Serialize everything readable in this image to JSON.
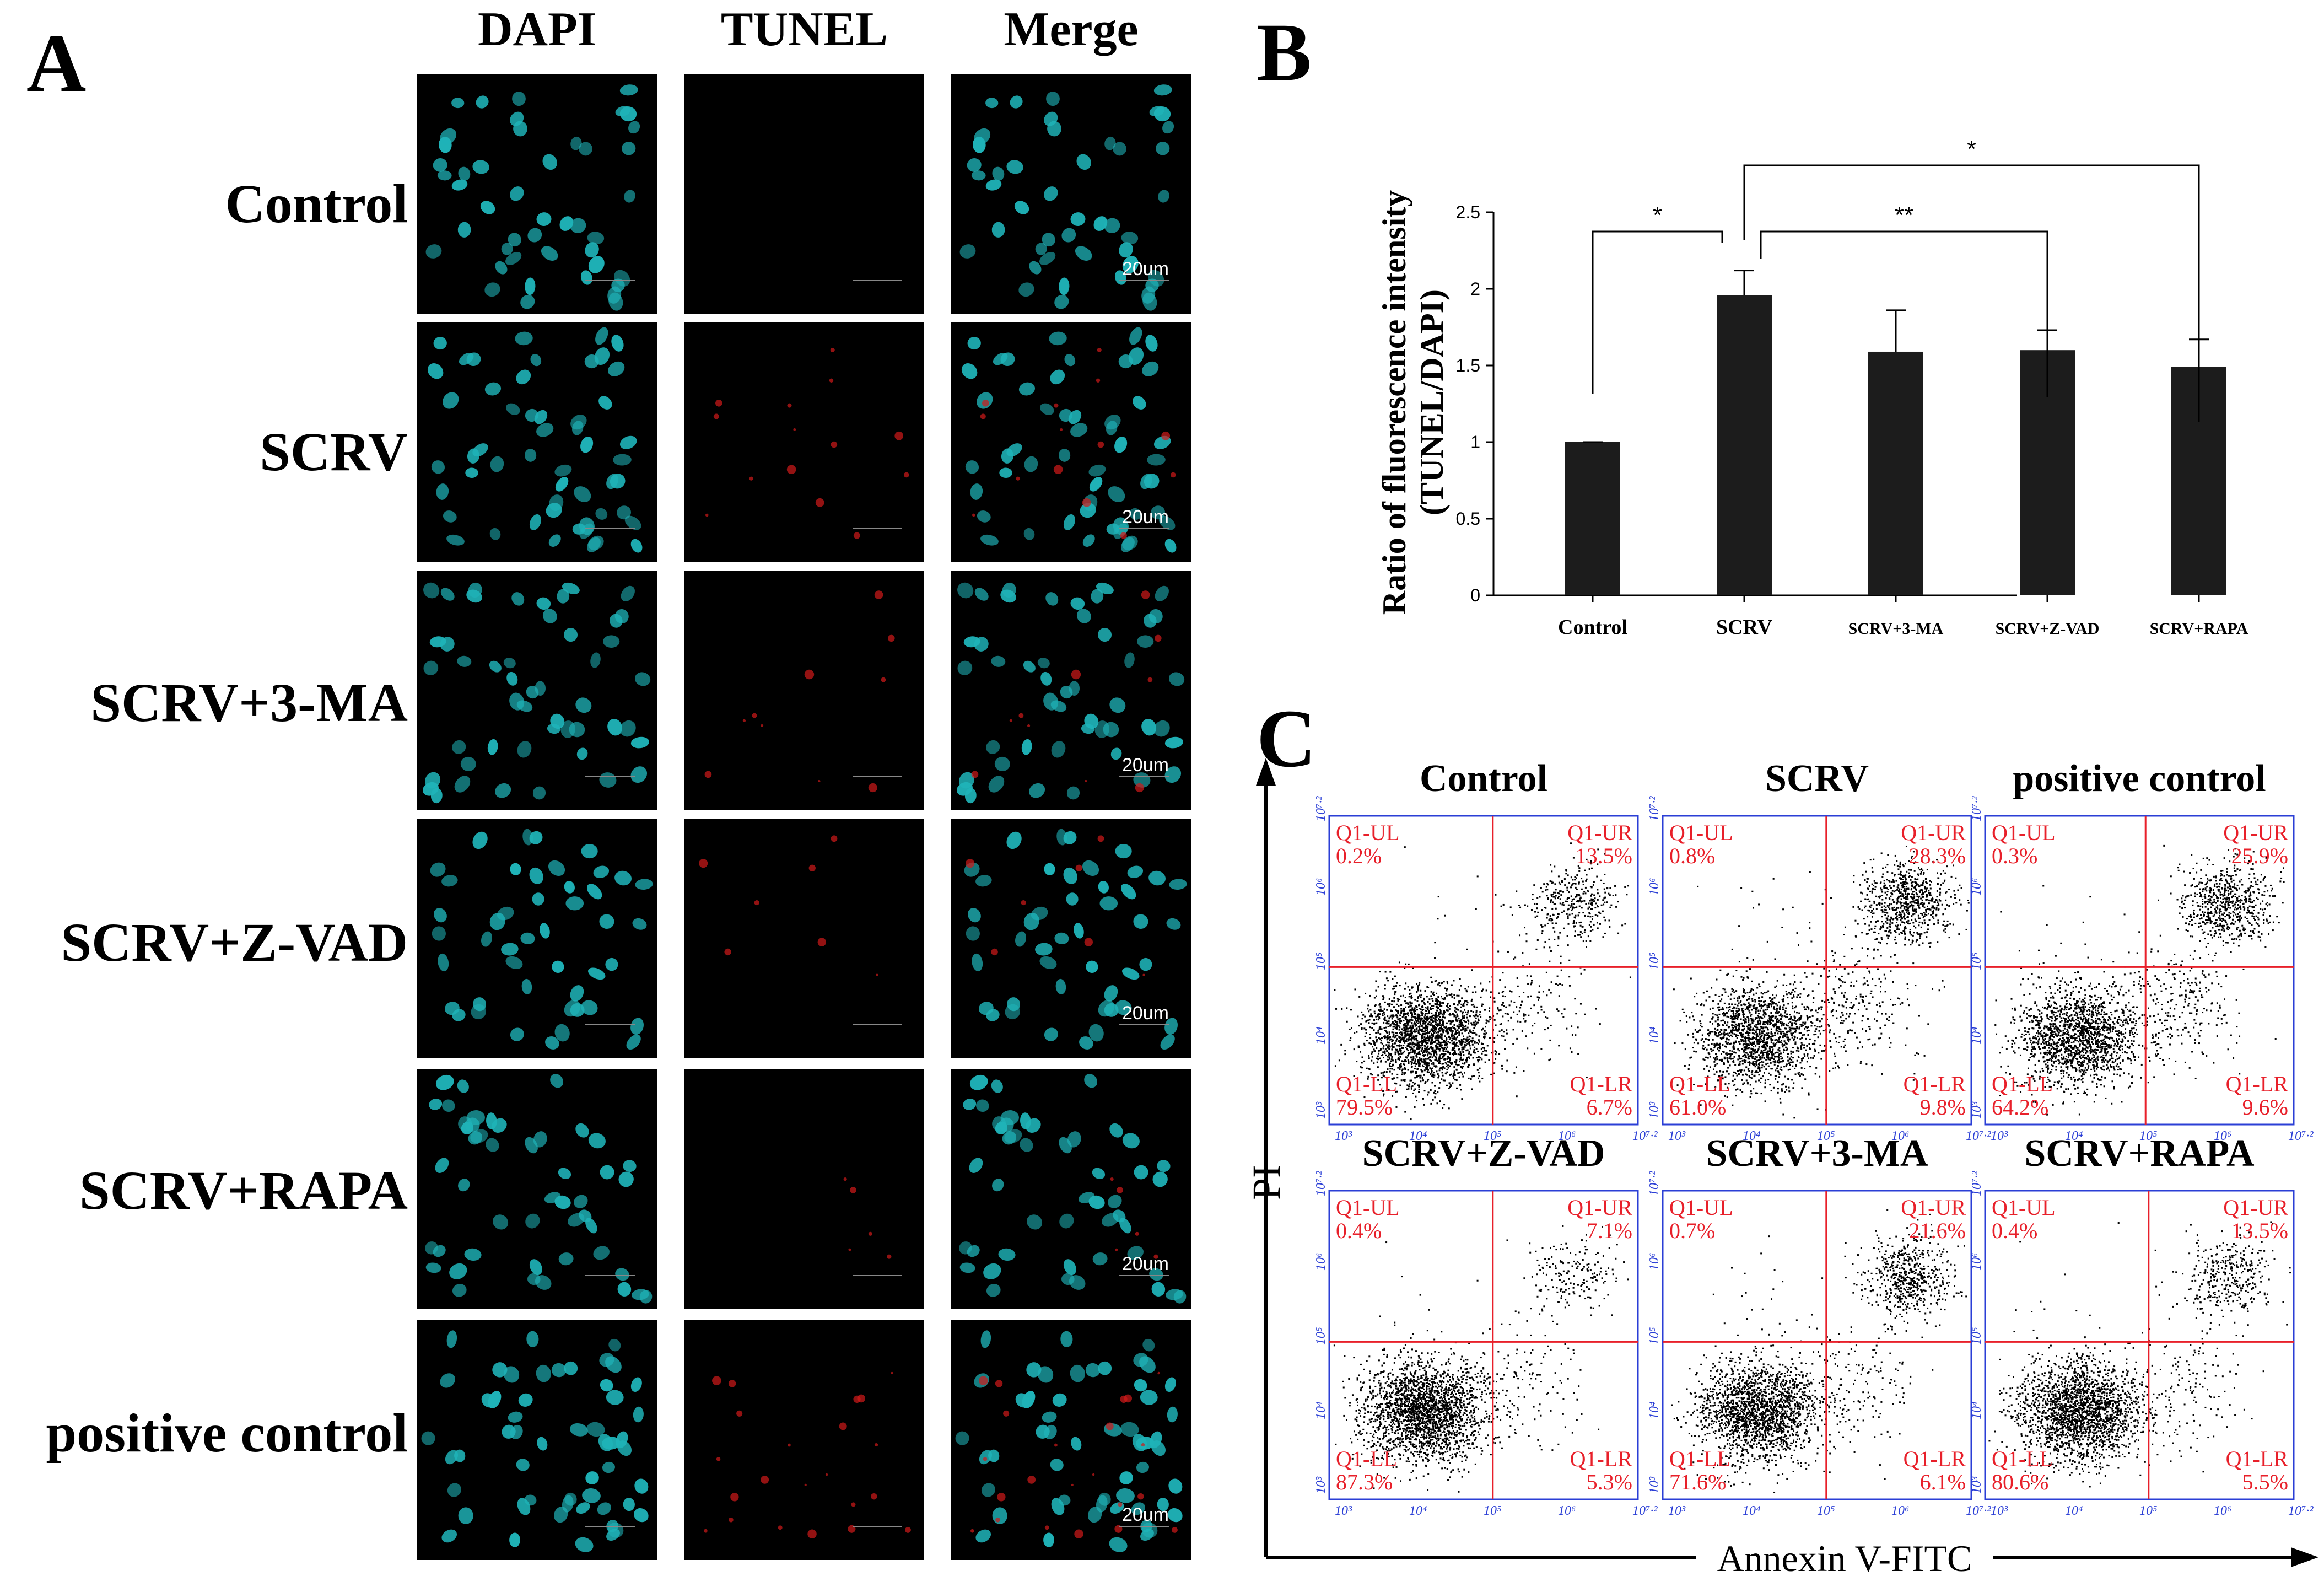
{
  "panels": {
    "a": {
      "letter": "A"
    },
    "b": {
      "letter": "B"
    },
    "c": {
      "letter": "C"
    }
  },
  "microscopy": {
    "columns": [
      "DAPI",
      "TUNEL",
      "Merge"
    ],
    "rows": [
      "Control",
      "SCRV",
      "SCRV+3-MA",
      "SCRV+Z-VAD",
      "SCRV+RAPA",
      "positive control"
    ],
    "scale_label": "20um",
    "colors": {
      "dapi": "#1fb3b8",
      "tunel": "#d21a1a",
      "background": "#000000"
    }
  },
  "chart_data": [
    {
      "type": "bar",
      "title": "",
      "ylabel_line1": "Ratio of fluorescence intensity",
      "ylabel_line2": "(TUNEL/DAPI)",
      "xlabel": "",
      "categories": [
        "Control",
        "SCRV",
        "SCRV+3-MA",
        "SCRV+Z-VAD",
        "SCRV+RAPA"
      ],
      "values": [
        1.0,
        1.96,
        1.59,
        1.6,
        1.49
      ],
      "errors": [
        0.0,
        0.16,
        0.27,
        0.13,
        0.18
      ],
      "ylim": [
        0,
        2.5
      ],
      "yticks": [
        0,
        0.5,
        1,
        1.5,
        2,
        2.5
      ],
      "ytick_labels": [
        "0",
        "0.5",
        "1",
        "1.5",
        "2",
        "2.5"
      ],
      "bar_color": "#1c1c1c",
      "significance": [
        {
          "from": "Control",
          "to": "SCRV",
          "label": "*"
        },
        {
          "from": "SCRV",
          "to": "SCRV+Z-VAD",
          "label": "**"
        },
        {
          "from": "SCRV",
          "to": "SCRV+RAPA",
          "label": "*"
        }
      ]
    },
    {
      "type": "scatter",
      "xlabel": "Annexin V-FITC",
      "ylabel": "PI",
      "axis_tick_labels": [
        "10³",
        "10⁴",
        "10⁵",
        "10⁶",
        "10⁷·²"
      ],
      "quadrant_line_color": "#e8202a",
      "frame_color": "#2b3fd6",
      "point_color": "#000000",
      "plots": [
        {
          "title": "Control",
          "quadrants": {
            "UL": "Q1-UL",
            "UR": "Q1-UR",
            "LL": "Q1-LL",
            "LR": "Q1-LR"
          },
          "UL": "0.2%",
          "UR": "13.5%",
          "LL": "79.5%",
          "LR": "6.7%"
        },
        {
          "title": "SCRV",
          "quadrants": {
            "UL": "Q1-UL",
            "UR": "Q1-UR",
            "LL": "Q1-LL",
            "LR": "Q1-LR"
          },
          "UL": "0.8%",
          "UR": "28.3%",
          "LL": "61.0%",
          "LR": "9.8%"
        },
        {
          "title": "positive control",
          "quadrants": {
            "UL": "Q1-UL",
            "UR": "Q1-UR",
            "LL": "Q1-LL",
            "LR": "Q1-LR"
          },
          "UL": "0.3%",
          "UR": "25.9%",
          "LL": "64.2%",
          "LR": "9.6%"
        },
        {
          "title": "SCRV+Z-VAD",
          "quadrants": {
            "UL": "Q1-UL",
            "UR": "Q1-UR",
            "LL": "Q1-LL",
            "LR": "Q1-LR"
          },
          "UL": "0.4%",
          "UR": "7.1%",
          "LL": "87.3%",
          "LR": "5.3%"
        },
        {
          "title": "SCRV+3-MA",
          "quadrants": {
            "UL": "Q1-UL",
            "UR": "Q1-UR",
            "LL": "Q1-LL",
            "LR": "Q1-LR"
          },
          "UL": "0.7%",
          "UR": "21.6%",
          "LL": "71.6%",
          "LR": "6.1%"
        },
        {
          "title": "SCRV+RAPA",
          "quadrants": {
            "UL": "Q1-UL",
            "UR": "Q1-UR",
            "LL": "Q1-LL",
            "LR": "Q1-LR"
          },
          "UL": "0.4%",
          "UR": "13.5%",
          "LL": "80.6%",
          "LR": "5.5%"
        }
      ]
    }
  ]
}
